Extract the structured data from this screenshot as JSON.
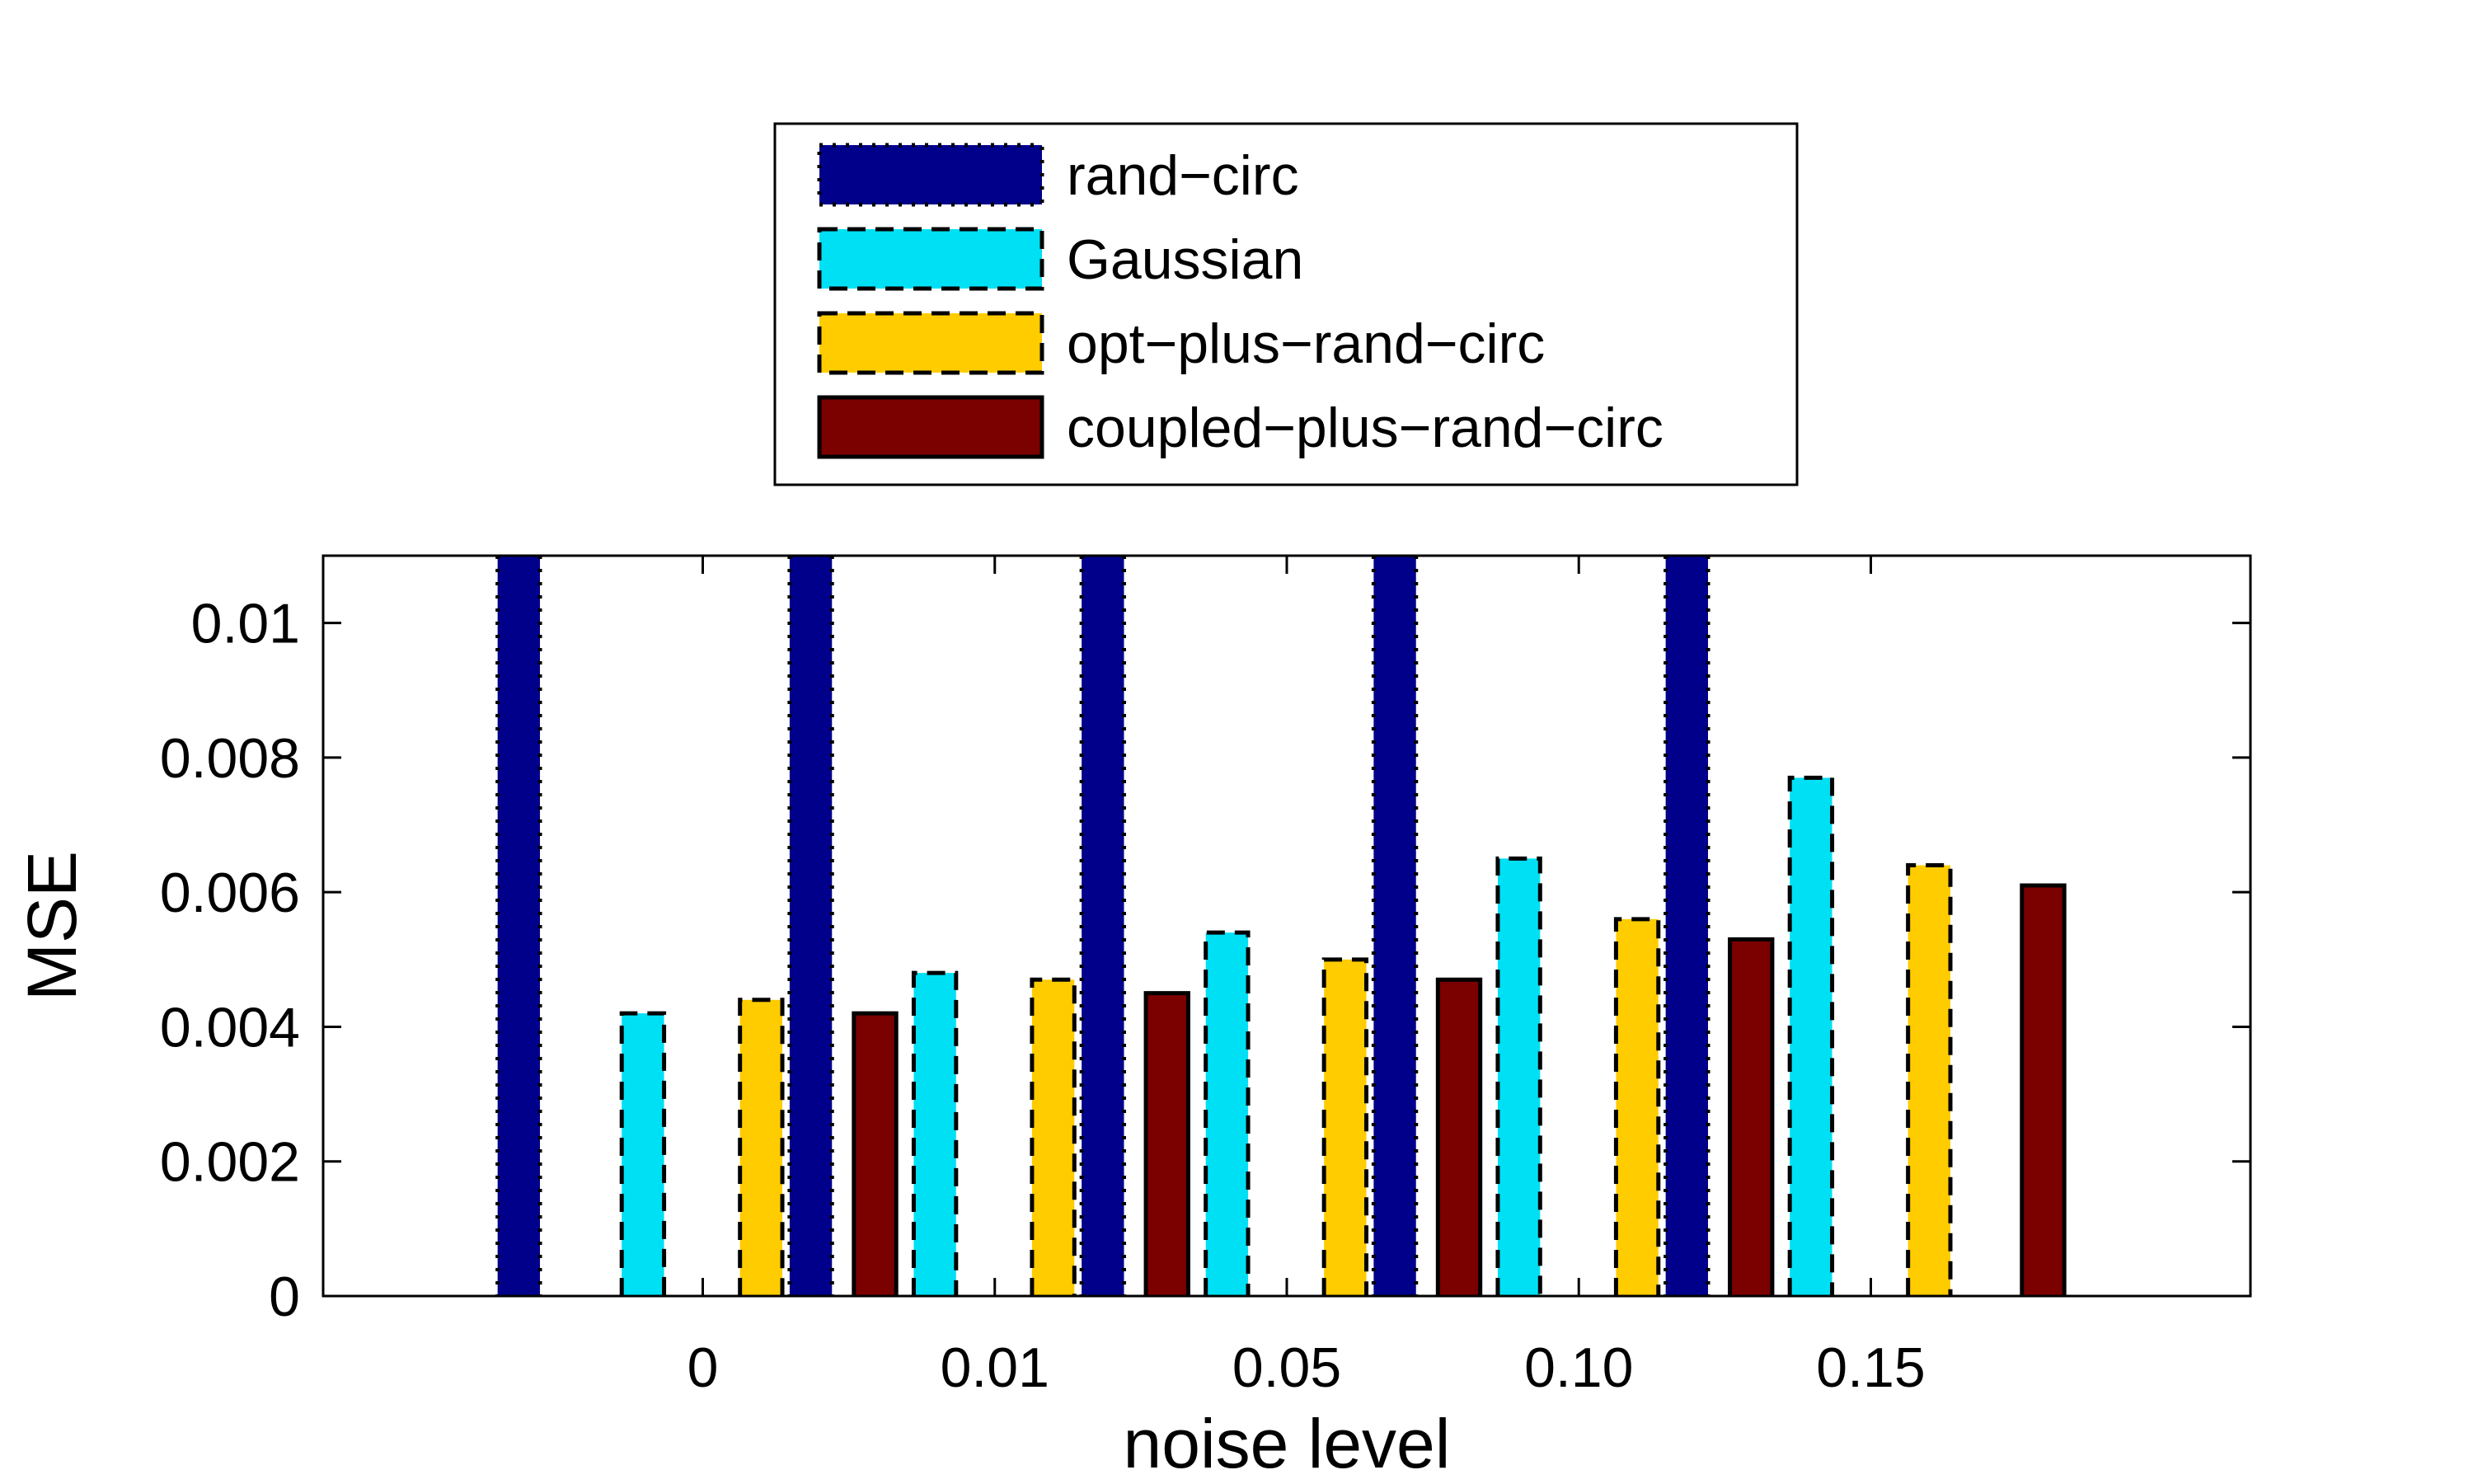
{
  "chart_data": {
    "type": "bar",
    "title": "",
    "xlabel": "noise level",
    "ylabel": "MSE",
    "categories": [
      "0",
      "0.01",
      "0.05",
      "0.10",
      "0.15"
    ],
    "yticks": [
      "0",
      "0.002",
      "0.004",
      "0.006",
      "0.008",
      "0.01"
    ],
    "ytick_values": [
      0,
      0.002,
      0.004,
      0.006,
      0.008,
      0.01
    ],
    "ylim": [
      0,
      0.011
    ],
    "grid": false,
    "legend_position": "top-center (outside plot area)",
    "series": [
      {
        "name": "rand−circ",
        "color": "#00008B",
        "edge": "dotted",
        "values": [
          0.011,
          0.011,
          0.011,
          0.011,
          0.011
        ],
        "note_clipped": true
      },
      {
        "name": "Gaussian",
        "color": "#00E0F5",
        "edge": "dashed",
        "values": [
          0.0042,
          0.0048,
          0.0054,
          0.0065,
          0.0077
        ]
      },
      {
        "name": "opt−plus−rand−circ",
        "color": "#FFCC00",
        "edge": "dashed",
        "values": [
          0.0044,
          0.0047,
          0.005,
          0.0056,
          0.0064
        ]
      },
      {
        "name": "coupled−plus−rand−circ",
        "color": "#7B0000",
        "edge": "solid",
        "values": [
          0.0042,
          0.0045,
          0.0047,
          0.0053,
          0.0061
        ]
      }
    ]
  }
}
